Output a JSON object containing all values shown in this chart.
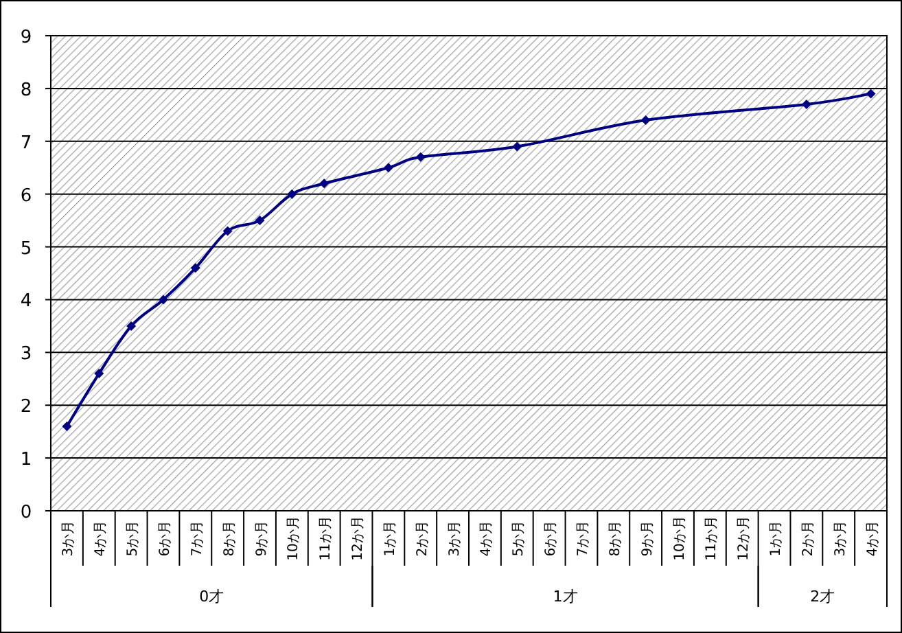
{
  "chart_data": {
    "type": "line",
    "categories": [
      "3か月",
      "4か月",
      "5か月",
      "6か月",
      "7か月",
      "8か月",
      "9か月",
      "10か月",
      "11か月",
      "12か月",
      "1か月",
      "2か月",
      "3か月",
      "4か月",
      "5か月",
      "6か月",
      "7か月",
      "8か月",
      "9か月",
      "10か月",
      "11か月",
      "12か月",
      "1か月",
      "2か月",
      "3か月",
      "4か月"
    ],
    "values": [
      1.6,
      2.6,
      3.5,
      4.0,
      4.6,
      5.3,
      5.5,
      6.0,
      6.2,
      null,
      6.5,
      6.7,
      null,
      null,
      6.9,
      null,
      null,
      null,
      7.4,
      null,
      null,
      null,
      null,
      7.7,
      null,
      7.9
    ],
    "color": "#000080",
    "ylim": [
      0,
      9
    ],
    "yticks": [
      0,
      1,
      2,
      3,
      4,
      5,
      6,
      7,
      8,
      9
    ],
    "grid": "y",
    "marker": "diamond",
    "annotations": [
      "0才",
      "1才",
      "2才"
    ]
  }
}
